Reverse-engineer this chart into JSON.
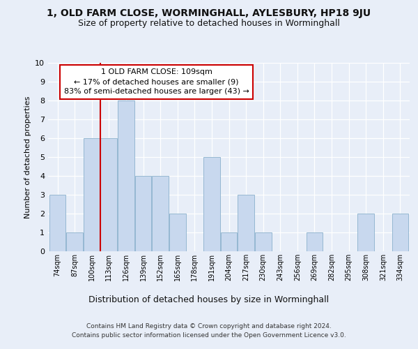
{
  "title1": "1, OLD FARM CLOSE, WORMINGHALL, AYLESBURY, HP18 9JU",
  "title2": "Size of property relative to detached houses in Worminghall",
  "xlabel": "Distribution of detached houses by size in Worminghall",
  "ylabel": "Number of detached properties",
  "footer1": "Contains HM Land Registry data © Crown copyright and database right 2024.",
  "footer2": "Contains public sector information licensed under the Open Government Licence v3.0.",
  "annotation_line1": "1 OLD FARM CLOSE: 109sqm",
  "annotation_line2": "← 17% of detached houses are smaller (9)",
  "annotation_line3": "83% of semi-detached houses are larger (43) →",
  "bin_labels": [
    "74sqm",
    "87sqm",
    "100sqm",
    "113sqm",
    "126sqm",
    "139sqm",
    "152sqm",
    "165sqm",
    "178sqm",
    "191sqm",
    "204sqm",
    "217sqm",
    "230sqm",
    "243sqm",
    "256sqm",
    "269sqm",
    "282sqm",
    "295sqm",
    "308sqm",
    "321sqm",
    "334sqm"
  ],
  "values": [
    3,
    1,
    6,
    6,
    8,
    4,
    4,
    2,
    0,
    5,
    1,
    3,
    1,
    0,
    0,
    1,
    0,
    0,
    2,
    0,
    2
  ],
  "bar_color": "#c8d8ee",
  "bar_edge_color": "#8ab0cc",
  "vline_color": "#cc0000",
  "vline_x_index": 2,
  "bg_color": "#e8eef8",
  "grid_color": "#ffffff",
  "annotation_box_color": "#ffffff",
  "annotation_box_edge": "#cc0000",
  "ylim": [
    0,
    10
  ],
  "yticks": [
    0,
    1,
    2,
    3,
    4,
    5,
    6,
    7,
    8,
    9,
    10
  ],
  "title1_fontsize": 10,
  "title2_fontsize": 9,
  "ylabel_fontsize": 8,
  "xlabel_fontsize": 9,
  "xtick_fontsize": 7,
  "ytick_fontsize": 8,
  "footer_fontsize": 6.5,
  "ann_fontsize": 8
}
